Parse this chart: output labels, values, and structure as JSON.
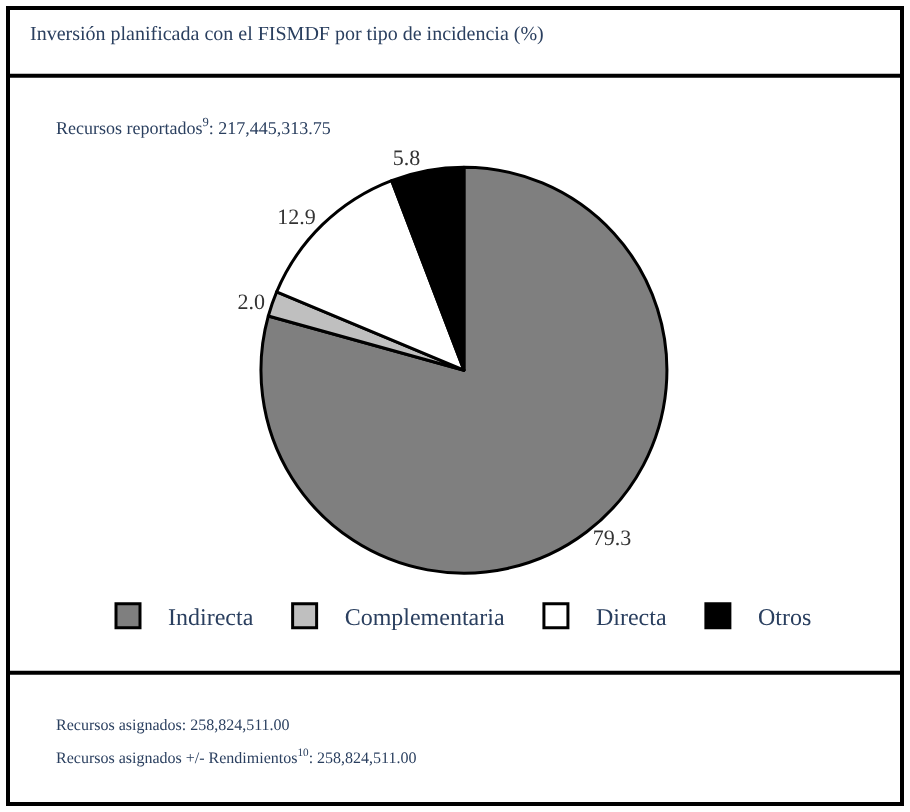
{
  "chart_data": {
    "type": "pie",
    "title": "Inversión planificada con el FISMDF por tipo de incidencia (%)",
    "subtitle": "Recursos reportados$^{9}$: 217,445,313.75",
    "categories": [
      "Indirecta",
      "Complementaria",
      "Directa",
      "Otros"
    ],
    "values": [
      79.3,
      2.0,
      12.9,
      5.8
    ],
    "colors": [
      "#7f7f7f",
      "#bfbfbf",
      "#ffffff",
      "#000000"
    ],
    "value_labels": [
      "79.3",
      "2.0",
      "12.9",
      "5.8"
    ],
    "legend": "bottom",
    "annotations": [
      "Recursos asignados: 258,824,511.00",
      "Recursos asignados +/- Rendimientos$^{10}$: 258,824,511.00"
    ]
  }
}
